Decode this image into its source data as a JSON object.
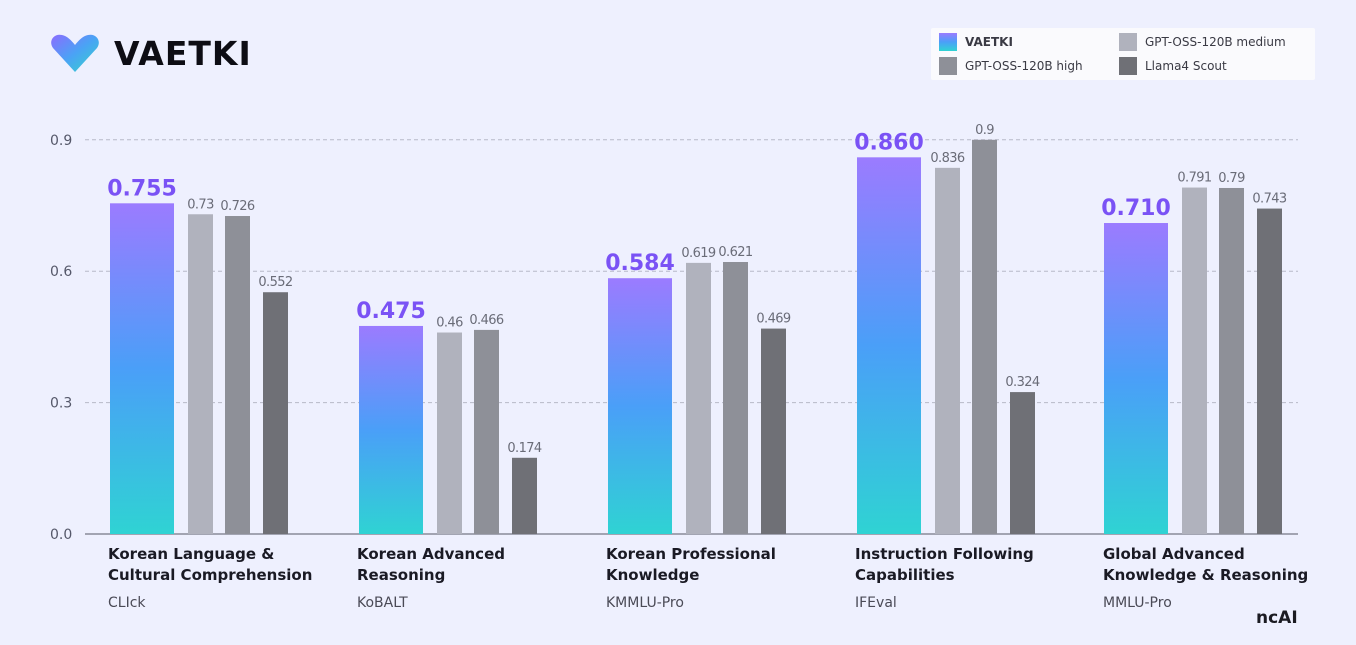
{
  "brand": {
    "name": "VAETKI",
    "footer_logo": "ncAI"
  },
  "colors": {
    "vaetki_top": "#9b7bff",
    "vaetki_mid": "#4a9ff8",
    "vaetki_bottom": "#2fd3d3",
    "gpt_medium": "#b0b2bd",
    "gpt_high": "#8e9098",
    "llama": "#6f7076",
    "value_highlight": "#7a52f5",
    "grid": "#b7b9c8"
  },
  "chart_data": {
    "type": "bar",
    "ylim": [
      0,
      0.95
    ],
    "yticks": [
      {
        "value": 0.0,
        "label": "0.0"
      },
      {
        "value": 0.3,
        "label": "0.3"
      },
      {
        "value": 0.6,
        "label": "0.6"
      },
      {
        "value": 0.9,
        "label": "0.9"
      }
    ],
    "grid": "dashed horizontal",
    "legend_position": "top-right",
    "categories": [
      {
        "lines": [
          "Korean Language &",
          "Cultural Comprehension"
        ],
        "benchmark": "CLIck"
      },
      {
        "lines": [
          "Korean Advanced",
          "Reasoning"
        ],
        "benchmark": "KoBALT"
      },
      {
        "lines": [
          "Korean Professional",
          "Knowledge"
        ],
        "benchmark": "KMMLU-Pro"
      },
      {
        "lines": [
          "Instruction Following",
          "Capabilities"
        ],
        "benchmark": "IFEval"
      },
      {
        "lines": [
          "Global Advanced",
          "Knowledge & Reasoning"
        ],
        "benchmark": "MMLU-Pro"
      }
    ],
    "series": [
      {
        "name": "VAETKI",
        "color_key": "vaetki",
        "values": [
          0.755,
          0.475,
          0.584,
          0.86,
          0.71
        ],
        "labels": [
          "0.755",
          "0.475",
          "0.584",
          "0.860",
          "0.710"
        ]
      },
      {
        "name": "GPT-OSS-120B medium",
        "color_key": "gpt_medium",
        "values": [
          0.73,
          0.46,
          0.619,
          0.836,
          0.791
        ],
        "labels": [
          "0.73",
          "0.46",
          "0.619",
          "0.836",
          "0.791"
        ]
      },
      {
        "name": "GPT-OSS-120B high",
        "color_key": "gpt_high",
        "values": [
          0.726,
          0.466,
          0.621,
          0.9,
          0.79
        ],
        "labels": [
          "0.726",
          "0.466",
          "0.621",
          "0.9",
          "0.79"
        ]
      },
      {
        "name": "Llama4 Scout",
        "color_key": "llama",
        "values": [
          0.552,
          0.174,
          0.469,
          0.324,
          0.743
        ],
        "labels": [
          "0.552",
          "0.174",
          "0.469",
          "0.324",
          "0.743"
        ]
      }
    ]
  }
}
